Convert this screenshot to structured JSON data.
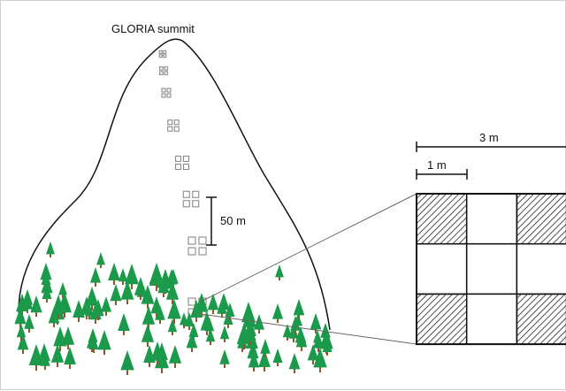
{
  "figure": {
    "title": "GLORIA summit",
    "scale_bar_label": "50 m",
    "grid": {
      "top_scale_label": "3 m",
      "sub_scale_label": "1 m",
      "rows": 3,
      "cols": 3,
      "hatched_cells": [
        "top-left",
        "top-right",
        "bottom-left",
        "bottom-right"
      ]
    },
    "colors": {
      "outline": "#111111",
      "tree": "#1a9a4a",
      "trunk": "#8a5a2b",
      "hatch": "#222222",
      "plot_marker": "#8a8a8a"
    }
  }
}
